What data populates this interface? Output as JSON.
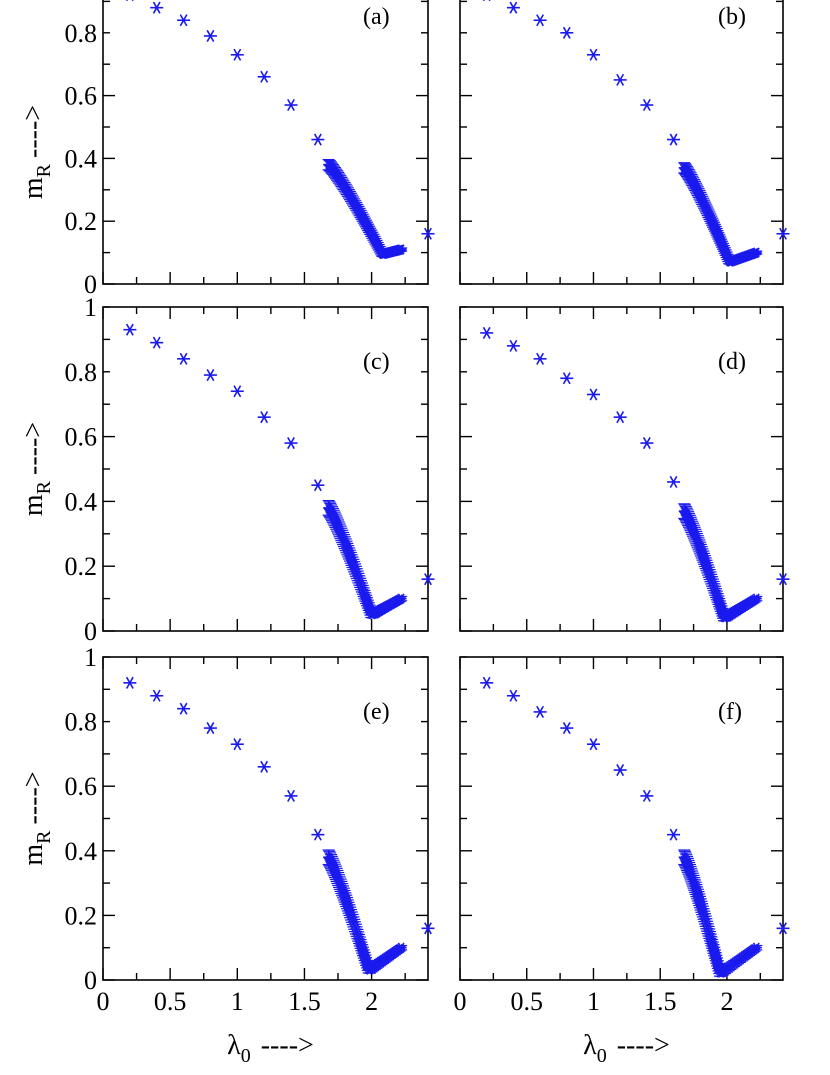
{
  "chart_data": [
    {
      "type": "scatter",
      "panel_label": "(a)",
      "ylabel_main": "m",
      "ylabel_sub": "R",
      "ylabel_arrow": "---->",
      "xlabel_main": "",
      "xlabel_sub": "",
      "xlabel_arrow": "",
      "xlim": [
        0,
        2.42
      ],
      "ylim": [
        0,
        0.88
      ],
      "yticks": [
        "0",
        "0.2",
        "0.4",
        "0.6",
        "0.8"
      ],
      "xticks": [],
      "marker_color": "#1a1aee",
      "series": [
        {
          "x": [
            0.2,
            0.4,
            0.6,
            0.8,
            1.0,
            1.2,
            1.4,
            1.6,
            2.42
          ],
          "y": [
            0.92,
            0.88,
            0.84,
            0.79,
            0.73,
            0.66,
            0.57,
            0.46,
            0.16
          ]
        }
      ],
      "dense_band": {
        "x_start": 1.68,
        "x_min": 2.08,
        "x_end": 2.22,
        "y_start": 0.38,
        "y_min": 0.095,
        "y_end": 0.11,
        "err": 0.02
      }
    },
    {
      "type": "scatter",
      "panel_label": "(b)",
      "ylabel_main": "",
      "ylabel_sub": "",
      "ylabel_arrow": "",
      "xlabel_main": "",
      "xlabel_sub": "",
      "xlabel_arrow": "",
      "xlim": [
        0,
        2.42
      ],
      "ylim": [
        0,
        0.88
      ],
      "yticks": [],
      "xticks": [],
      "marker_color": "#1a1aee",
      "series": [
        {
          "x": [
            0.2,
            0.4,
            0.6,
            0.8,
            1.0,
            1.2,
            1.4,
            1.6,
            2.42
          ],
          "y": [
            0.92,
            0.88,
            0.84,
            0.8,
            0.73,
            0.65,
            0.57,
            0.46,
            0.16
          ]
        }
      ],
      "dense_band": {
        "x_start": 1.68,
        "x_min": 2.02,
        "x_end": 2.22,
        "y_start": 0.37,
        "y_min": 0.07,
        "y_end": 0.1,
        "err": 0.02
      }
    },
    {
      "type": "scatter",
      "panel_label": "(c)",
      "ylabel_main": "m",
      "ylabel_sub": "R",
      "ylabel_arrow": "---->",
      "xlabel_main": "",
      "xlabel_sub": "",
      "xlabel_arrow": "",
      "xlim": [
        0,
        2.42
      ],
      "ylim": [
        0,
        1.0
      ],
      "yticks": [
        "0",
        "0.2",
        "0.4",
        "0.6",
        "0.8",
        "1"
      ],
      "xticks": [],
      "marker_color": "#1a1aee",
      "series": [
        {
          "x": [
            0.2,
            0.4,
            0.6,
            0.8,
            1.0,
            1.2,
            1.4,
            1.6,
            2.42
          ],
          "y": [
            0.93,
            0.89,
            0.84,
            0.79,
            0.74,
            0.66,
            0.58,
            0.45,
            0.16
          ]
        }
      ],
      "dense_band": {
        "x_start": 1.68,
        "x_min": 2.0,
        "x_end": 2.22,
        "y_start": 0.38,
        "y_min": 0.05,
        "y_end": 0.1,
        "err": 0.025
      }
    },
    {
      "type": "scatter",
      "panel_label": "(d)",
      "ylabel_main": "",
      "ylabel_sub": "",
      "ylabel_arrow": "",
      "xlabel_main": "",
      "xlabel_sub": "",
      "xlabel_arrow": "",
      "xlim": [
        0,
        2.42
      ],
      "ylim": [
        0,
        1.0
      ],
      "yticks": [],
      "xticks": [],
      "marker_color": "#1a1aee",
      "series": [
        {
          "x": [
            0.2,
            0.4,
            0.6,
            0.8,
            1.0,
            1.2,
            1.4,
            1.6,
            2.42
          ],
          "y": [
            0.92,
            0.88,
            0.84,
            0.78,
            0.73,
            0.66,
            0.58,
            0.46,
            0.16
          ]
        }
      ],
      "dense_band": {
        "x_start": 1.68,
        "x_min": 1.98,
        "x_end": 2.22,
        "y_start": 0.37,
        "y_min": 0.04,
        "y_end": 0.1,
        "err": 0.025
      }
    },
    {
      "type": "scatter",
      "panel_label": "(e)",
      "ylabel_main": "m",
      "ylabel_sub": "R",
      "ylabel_arrow": "---->",
      "xlabel_main": "λ",
      "xlabel_sub": "0",
      "xlabel_arrow": "---->",
      "xlim": [
        0,
        2.42
      ],
      "ylim": [
        0,
        1.0
      ],
      "yticks": [
        "0",
        "0.2",
        "0.4",
        "0.6",
        "0.8",
        "1"
      ],
      "xticks": [
        "0",
        "0.5",
        "1",
        "1.5",
        "2"
      ],
      "marker_color": "#1a1aee",
      "series": [
        {
          "x": [
            0.2,
            0.4,
            0.6,
            0.8,
            1.0,
            1.2,
            1.4,
            1.6,
            2.42
          ],
          "y": [
            0.92,
            0.88,
            0.84,
            0.78,
            0.73,
            0.66,
            0.57,
            0.45,
            0.16
          ]
        }
      ],
      "dense_band": {
        "x_start": 1.68,
        "x_min": 1.98,
        "x_end": 2.22,
        "y_start": 0.38,
        "y_min": 0.03,
        "y_end": 0.1,
        "err": 0.025
      }
    },
    {
      "type": "scatter",
      "panel_label": "(f)",
      "ylabel_main": "",
      "ylabel_sub": "",
      "ylabel_arrow": "",
      "xlabel_main": "λ",
      "xlabel_sub": "0",
      "xlabel_arrow": "---->",
      "xlim": [
        0,
        2.42
      ],
      "ylim": [
        0,
        1.0
      ],
      "yticks": [],
      "xticks": [
        "0",
        "0.5",
        "1",
        "1.5",
        "2"
      ],
      "marker_color": "#1a1aee",
      "series": [
        {
          "x": [
            0.2,
            0.4,
            0.6,
            0.8,
            1.0,
            1.2,
            1.4,
            1.6,
            2.42
          ],
          "y": [
            0.92,
            0.88,
            0.83,
            0.78,
            0.73,
            0.65,
            0.57,
            0.45,
            0.16
          ]
        }
      ],
      "dense_band": {
        "x_start": 1.68,
        "x_min": 1.95,
        "x_end": 2.22,
        "y_start": 0.38,
        "y_min": 0.02,
        "y_end": 0.1,
        "err": 0.025
      }
    }
  ]
}
